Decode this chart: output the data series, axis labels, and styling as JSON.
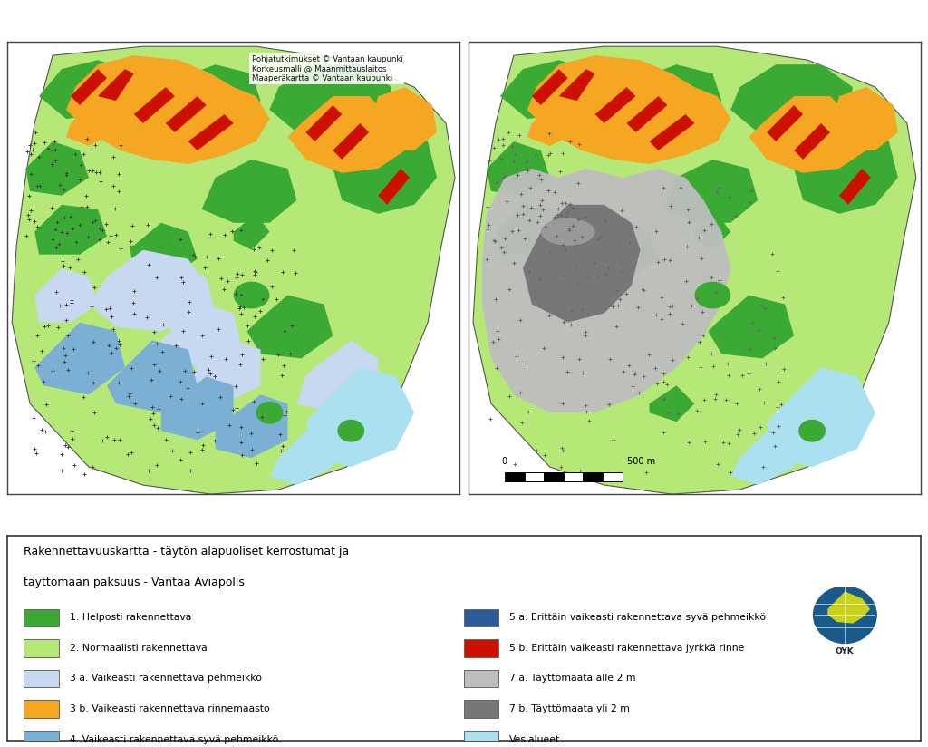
{
  "title_line1": "Rakennettavuuskartta - täytön alapuoliset kerrostumat ja",
  "title_line2": "täyttömaan paksuus - Vantaa Aviapolis",
  "credit_text": "Pohjatutkimukset © Vantaan kaupunki\nKorkeusmalli @ Maanmittauslaitos\nMaaperäkartta © Vantaan kaupunki",
  "scale_label_left": "0",
  "scale_label_right": "500 m",
  "color_light_green": "#b5e877",
  "color_dark_green": "#3aaa35",
  "color_orange": "#f5a623",
  "color_red": "#cc1100",
  "color_blue_soft": "#c8d8f0",
  "color_blue_med": "#7bafd4",
  "color_blue_deep": "#2c5b9a",
  "color_gray_light": "#bebebe",
  "color_gray_dark": "#777777",
  "color_water": "#aae0f0",
  "color_white": "#ffffff",
  "color_border": "#333333",
  "legend_items_left": [
    {
      "color": "#3aaa35",
      "label": "1. Helposti rakennettava"
    },
    {
      "color": "#b5e877",
      "label": "2. Normaalisti rakennettava"
    },
    {
      "color": "#c8d8f0",
      "label": "3 a. Vaikeasti rakennettava pehmeikkö"
    },
    {
      "color": "#f5a623",
      "label": "3 b. Vaikeasti rakennettava rinnemaasto"
    },
    {
      "color": "#7bafd4",
      "label": "4. Vaikeasti rakennettava syvä pehmeikkö"
    }
  ],
  "legend_items_right": [
    {
      "color": "#2c5b9a",
      "label": "5 a. Erittäin vaikeasti rakennettava syvä pehmeikkö"
    },
    {
      "color": "#cc1100",
      "label": "5 b. Erittäin vaikeasti rakennettava jyrkkä rinne"
    },
    {
      "color": "#bebebe",
      "label": "7 a. Täyttömaata alle 2 m"
    },
    {
      "color": "#777777",
      "label": "7 b. Täyttömaata yli 2 m"
    },
    {
      "color": "#aae0f0",
      "label": "Vesialueet"
    }
  ]
}
